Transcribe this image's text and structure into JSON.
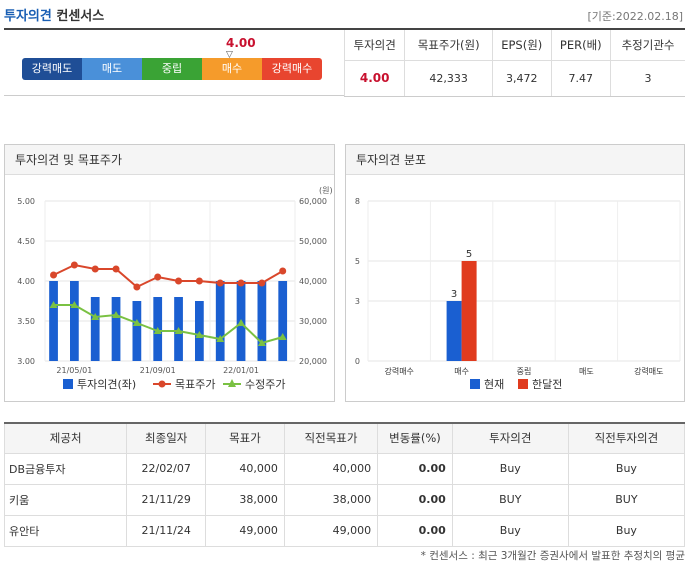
{
  "header": {
    "title_a": "투자의견",
    "title_b": "컨센서스",
    "ref_date": "[기준:2022.02.18]"
  },
  "gauge": {
    "value": "4.00",
    "segments": [
      {
        "label": "강력매도",
        "color": "#1f4e96"
      },
      {
        "label": "매도",
        "color": "#4a90d9"
      },
      {
        "label": "중립",
        "color": "#3aa335"
      },
      {
        "label": "매수",
        "color": "#f59b2b"
      },
      {
        "label": "강력매수",
        "color": "#e8452f"
      }
    ]
  },
  "summary": {
    "headers": [
      "투자의견",
      "목표주가(원)",
      "EPS(원)",
      "PER(배)",
      "추정기관수"
    ],
    "values": [
      "4.00",
      "42,333",
      "3,472",
      "7.47",
      "3"
    ]
  },
  "panels": {
    "left_title": "투자의견 및 목표주가",
    "right_title": "투자의견 분포"
  },
  "chart_data": [
    {
      "type": "bar",
      "title": "투자의견 및 목표주가",
      "left_ylim": [
        3.0,
        5.0
      ],
      "left_ticks": [
        "5.00",
        "4.50",
        "4.00",
        "3.50",
        "3.00"
      ],
      "right_ylim": [
        20000,
        60000
      ],
      "right_ticks": [
        "60,000",
        "50,000",
        "40,000",
        "30,000",
        "20,000"
      ],
      "right_unit": "(원)",
      "x_ticks": [
        "21/05/01",
        "21/09/01",
        "22/01/01"
      ],
      "series": [
        {
          "name": "투자의견(좌)",
          "type": "bar",
          "color": "#1a5fd1",
          "values": [
            4.0,
            4.0,
            3.8,
            3.8,
            3.75,
            3.8,
            3.8,
            3.75,
            4.0,
            4.0,
            4.0,
            4.0
          ]
        },
        {
          "name": "목표주가",
          "type": "line",
          "color": "#d9472b",
          "values": [
            41500,
            44000,
            43000,
            43000,
            38500,
            41000,
            40000,
            40000,
            39500,
            39500,
            39500,
            42500
          ]
        },
        {
          "name": "수정주가",
          "type": "line",
          "color": "#7ac143",
          "values": [
            34000,
            34000,
            31000,
            31500,
            29500,
            27500,
            27500,
            26500,
            25500,
            29500,
            24500,
            26000
          ]
        }
      ],
      "grid": true,
      "legend": "bottom"
    },
    {
      "type": "bar",
      "title": "투자의견 분포",
      "categories": [
        "강력매수",
        "매수",
        "중립",
        "매도",
        "강력매도"
      ],
      "ylim": [
        0,
        8
      ],
      "y_ticks": [
        "8",
        "5",
        "3",
        "0"
      ],
      "series": [
        {
          "name": "현재",
          "color": "#1a5fd1",
          "values": [
            0,
            3,
            0,
            0,
            0
          ]
        },
        {
          "name": "한달전",
          "color": "#e03b1e",
          "values": [
            0,
            5,
            0,
            0,
            0
          ]
        }
      ],
      "legend": "bottom"
    }
  ],
  "detail_table": {
    "headers": [
      "제공처",
      "최종일자",
      "목표가",
      "직전목표가",
      "변동률(%)",
      "투자의견",
      "직전투자의견"
    ],
    "rows": [
      [
        "DB금융투자",
        "22/02/07",
        "40,000",
        "40,000",
        "0.00",
        "Buy",
        "Buy"
      ],
      [
        "키움",
        "21/11/29",
        "38,000",
        "38,000",
        "0.00",
        "BUY",
        "BUY"
      ],
      [
        "유안타",
        "21/11/24",
        "49,000",
        "49,000",
        "0.00",
        "Buy",
        "Buy"
      ]
    ]
  },
  "footnote": "* 컨센서스 : 최근 3개월간 증권사에서 발표한 추정치의 평균"
}
